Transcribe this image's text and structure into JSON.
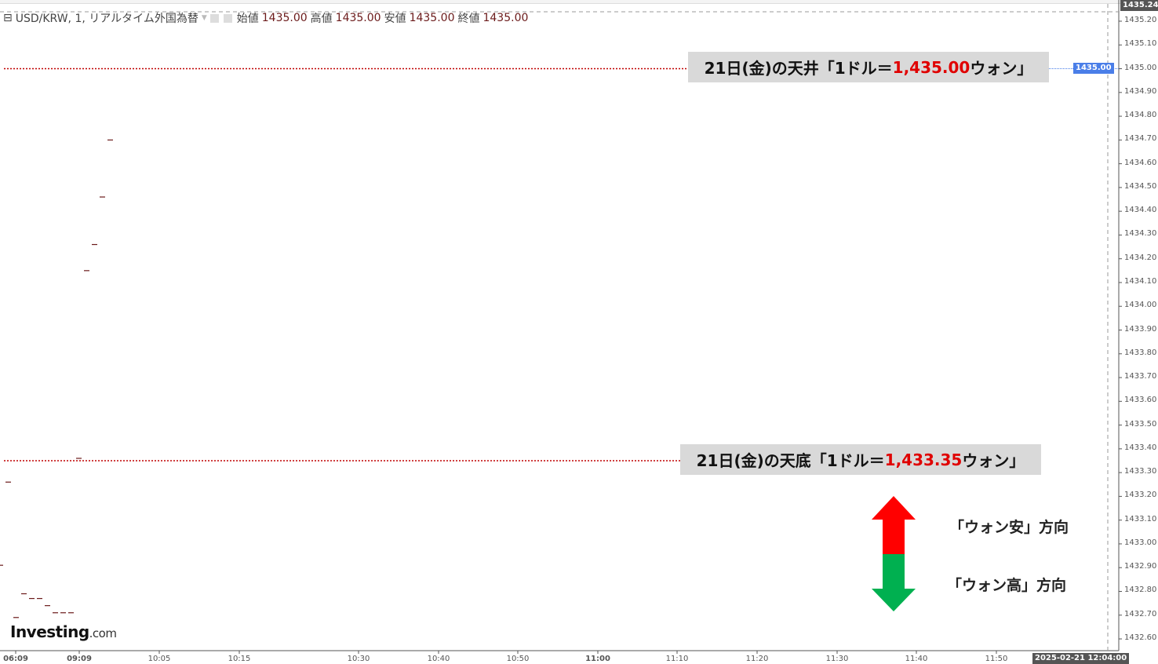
{
  "header": {
    "symbol": "USD/KRW, 1, リアルタイム外国為替",
    "open_label": "始値",
    "open": "1435.00",
    "high_label": "高値",
    "high": "1435.00",
    "low_label": "安値",
    "low": "1435.00",
    "close_label": "終値",
    "close": "1435.00"
  },
  "annotations": {
    "top_prefix": "21日(金)の天井「1ドル＝",
    "top_value": "1,435.00",
    "top_suffix": "ウォン」",
    "bottom_prefix": "21日(金)の天底「1ドル＝",
    "bottom_value": "1,433.35",
    "bottom_suffix": "ウォン」",
    "up_text": "「ウォン安」方向",
    "down_text": "「ウォン高」方向",
    "up_color": "#ff0000",
    "down_color": "#00b050"
  },
  "logo": {
    "main": "Investing",
    "suffix": ".com"
  },
  "badges": {
    "max_price": "1435.24",
    "current_price": "1435.00",
    "current_color": "#4a7ee8",
    "cursor_time": "2025-02-21 12:04:00"
  },
  "chart_data": {
    "type": "scatter",
    "marker": "dash",
    "ylim": [
      1432.6,
      1435.24
    ],
    "y_ticks": [
      "1435.20",
      "1435.10",
      "1435.00",
      "1434.90",
      "1434.80",
      "1434.70",
      "1434.60",
      "1434.50",
      "1434.40",
      "1434.30",
      "1434.20",
      "1434.10",
      "1434.00",
      "1433.90",
      "1433.80",
      "1433.70",
      "1433.60",
      "1433.50",
      "1433.40",
      "1433.30",
      "1433.20",
      "1433.10",
      "1433.00",
      "1432.90",
      "1432.80",
      "1432.70",
      "1432.60"
    ],
    "x_ticks": [
      "06:09",
      "09:09",
      "10:05",
      "10:15",
      "10:30",
      "10:40",
      "10:50",
      "11:00",
      "11:10",
      "11:20",
      "11:30",
      "11:40",
      "11:50"
    ],
    "points": [
      1432.91,
      1433.26,
      1432.69,
      1432.79,
      1432.77,
      1432.77,
      1432.74,
      1432.71,
      1432.71,
      1432.71,
      1433.36,
      1434.15,
      1434.26,
      1434.46,
      1434.7
    ],
    "hlines": [
      {
        "value": 1435.0,
        "color": "#c00000"
      },
      {
        "value": 1433.35,
        "color": "#c00000"
      }
    ],
    "color": "#6b1a1a"
  }
}
